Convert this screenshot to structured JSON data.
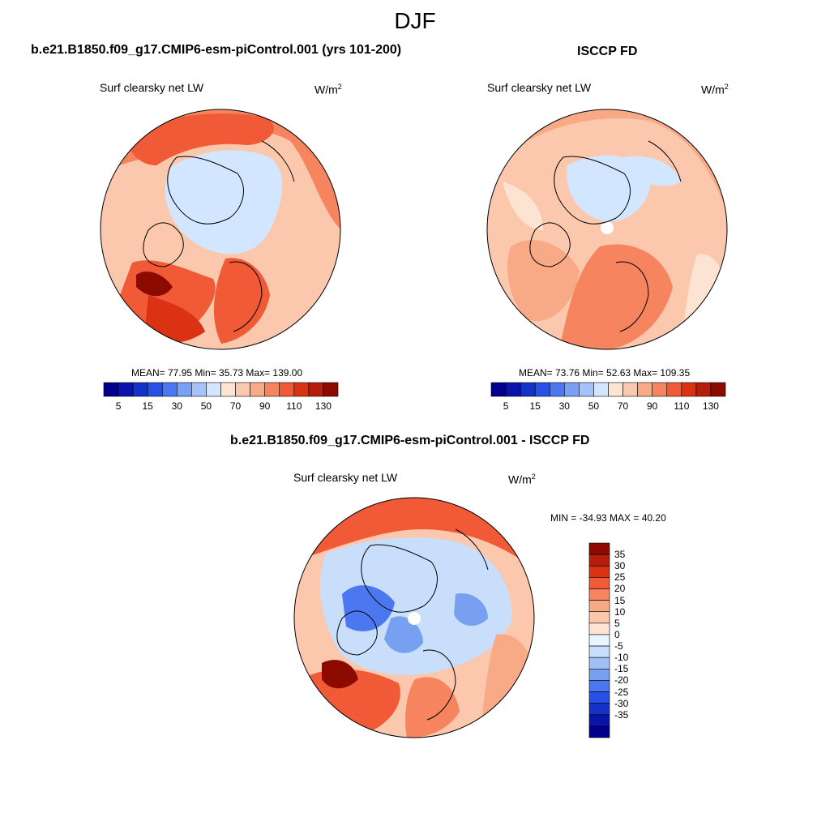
{
  "title": "DJF",
  "panels": [
    {
      "heading": "b.e21.B1850.f09_g17.CMIP6-esm-piControl.001 (yrs 101-200)",
      "variable": "Surf clearsky net LW",
      "units": "W/m",
      "units_exp": "2",
      "stats": "MEAN=  77.95  Min=  35.73  Max= 139.00"
    },
    {
      "heading": "ISCCP FD",
      "variable": "Surf clearsky net LW",
      "units": "W/m",
      "units_exp": "2",
      "stats": "MEAN=  73.76  Min=  52.63  Max= 109.35"
    }
  ],
  "diff_panel": {
    "heading": "b.e21.B1850.f09_g17.CMIP6-esm-piControl.001 - ISCCP FD",
    "variable": "Surf clearsky net LW",
    "units": "W/m",
    "units_exp": "2",
    "stats": "MIN = -34.93 MAX =  40.20"
  },
  "colorbar_abs": {
    "colors": [
      "#00008c",
      "#0a14aa",
      "#1432c8",
      "#2850e6",
      "#4b78f0",
      "#78a0f5",
      "#a5c3fa",
      "#d2e6ff",
      "#fde4d2",
      "#fbc8ae",
      "#f8aa87",
      "#f5845f",
      "#f05a37",
      "#dc3214",
      "#b41e0a",
      "#8c0a00"
    ],
    "tick_labels": [
      "5",
      "15",
      "30",
      "50",
      "70",
      "90",
      "110",
      "130"
    ]
  },
  "colorbar_diff": {
    "colors": [
      "#8c0a00",
      "#b41e0a",
      "#dc3214",
      "#f05a37",
      "#f5845f",
      "#f8aa87",
      "#fbc8ae",
      "#fde4d2",
      "#e8f4ff",
      "#c8defa",
      "#a0c0f5",
      "#78a0f0",
      "#4b78f0",
      "#2850e6",
      "#1432c8",
      "#0a14aa",
      "#00008c"
    ],
    "tick_labels": [
      "35",
      "30",
      "25",
      "20",
      "15",
      "10",
      "5",
      "0",
      "-5",
      "-10",
      "-15",
      "-20",
      "-25",
      "-30",
      "-35"
    ]
  }
}
